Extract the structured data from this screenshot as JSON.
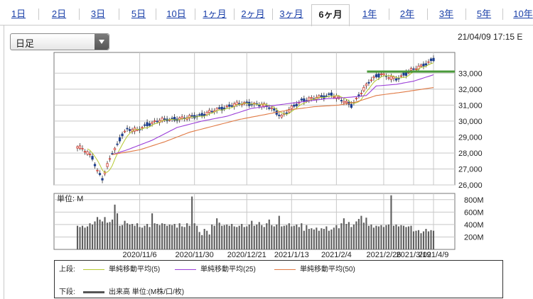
{
  "tabs": [
    {
      "label": "1日",
      "active": false
    },
    {
      "label": "2日",
      "active": false
    },
    {
      "label": "3日",
      "active": false
    },
    {
      "label": "5日",
      "active": false
    },
    {
      "label": "10日",
      "active": false
    },
    {
      "label": "1ヶ月",
      "active": false
    },
    {
      "label": "2ヶ月",
      "active": false
    },
    {
      "label": "3ヶ月",
      "active": false
    },
    {
      "label": "6ヶ月",
      "active": true
    },
    {
      "label": "1年",
      "active": false
    },
    {
      "label": "2年",
      "active": false
    },
    {
      "label": "3年",
      "active": false
    },
    {
      "label": "5年",
      "active": false
    },
    {
      "label": "10年",
      "active": false
    }
  ],
  "selector": {
    "value": "日足"
  },
  "timestamp": "21/04/09 17:15 E",
  "legend": {
    "upper_label": "上段:",
    "lower_label": "下段:",
    "ma5": "単純移動平均(5)",
    "ma25": "単純移動平均(25)",
    "ma50": "単純移動平均(50)",
    "volume": "出来高 単位:(M株/口/枚)",
    "colors": {
      "ma5": "#b5c930",
      "ma25": "#9b3fd8",
      "ma50": "#e07a45",
      "volume": "#555555",
      "up": "#d33a2f",
      "down": "#1d3f8f"
    }
  },
  "chart_data": [
    {
      "type": "candlestick",
      "title": "",
      "ylim": [
        26000,
        34300
      ],
      "yticks": [
        26000,
        27000,
        28000,
        29000,
        30000,
        31000,
        32000,
        33000
      ],
      "ytick_labels": [
        "26,000",
        "27,000",
        "28,000",
        "29,000",
        "30,000",
        "31,000",
        "32,000",
        "33,000"
      ],
      "xtick_labels": [
        "2020/11/6",
        "2020/11/30",
        "2020/12/21",
        "2021/1/13",
        "2021/2/4",
        "2021/2/26",
        "2021/3/19",
        "2021/4/9"
      ],
      "close_anchors": [
        [
          0,
          28400
        ],
        [
          2,
          28250
        ],
        [
          4,
          28000
        ],
        [
          6,
          27700
        ],
        [
          8,
          26900
        ],
        [
          10,
          26400
        ],
        [
          12,
          27200
        ],
        [
          14,
          28000
        ],
        [
          16,
          28500
        ],
        [
          18,
          29200
        ],
        [
          20,
          29500
        ],
        [
          24,
          29400
        ],
        [
          28,
          29800
        ],
        [
          32,
          30000
        ],
        [
          36,
          30100
        ],
        [
          44,
          30200
        ],
        [
          50,
          30400
        ],
        [
          56,
          30700
        ],
        [
          62,
          31000
        ],
        [
          66,
          31100
        ],
        [
          70,
          31100
        ],
        [
          74,
          31000
        ],
        [
          78,
          30800
        ],
        [
          82,
          30300
        ],
        [
          86,
          30800
        ],
        [
          90,
          31300
        ],
        [
          94,
          31400
        ],
        [
          98,
          31500
        ],
        [
          102,
          31700
        ],
        [
          106,
          31300
        ],
        [
          110,
          31000
        ],
        [
          114,
          31800
        ],
        [
          118,
          32600
        ],
        [
          122,
          33000
        ],
        [
          124,
          32800
        ],
        [
          128,
          32600
        ],
        [
          132,
          33000
        ],
        [
          134,
          33200
        ],
        [
          138,
          33400
        ],
        [
          140,
          33600
        ],
        [
          143,
          33900
        ]
      ],
      "ma25_anchors": [
        [
          14,
          27900
        ],
        [
          20,
          28200
        ],
        [
          30,
          28800
        ],
        [
          40,
          29600
        ],
        [
          50,
          30000
        ],
        [
          60,
          30300
        ],
        [
          70,
          30800
        ],
        [
          80,
          31000
        ],
        [
          90,
          31200
        ],
        [
          100,
          31400
        ],
        [
          110,
          31500
        ],
        [
          116,
          31600
        ],
        [
          120,
          32200
        ],
        [
          128,
          32300
        ],
        [
          135,
          32500
        ],
        [
          143,
          32900
        ]
      ],
      "ma50_anchors": [
        [
          14,
          27900
        ],
        [
          25,
          28200
        ],
        [
          35,
          28700
        ],
        [
          45,
          29300
        ],
        [
          55,
          29700
        ],
        [
          65,
          30100
        ],
        [
          75,
          30400
        ],
        [
          85,
          30700
        ],
        [
          95,
          30900
        ],
        [
          105,
          31000
        ],
        [
          112,
          31200
        ],
        [
          120,
          31600
        ],
        [
          130,
          31800
        ],
        [
          143,
          32100
        ]
      ],
      "resistance_line": {
        "x0": 118,
        "x1": 143,
        "y": 33100
      }
    },
    {
      "type": "bar",
      "title": "",
      "unit_label": "単位: M",
      "ylim": [
        0,
        900
      ],
      "yticks": [
        200,
        400,
        600,
        800
      ],
      "ytick_labels": [
        "200M",
        "400M",
        "600M",
        "800M"
      ],
      "volumes": [
        380,
        360,
        380,
        350,
        370,
        420,
        400,
        450,
        520,
        480,
        450,
        520,
        430,
        440,
        480,
        720,
        580,
        380,
        390,
        460,
        420,
        400,
        410,
        380,
        420,
        360,
        350,
        380,
        410,
        360,
        580,
        420,
        410,
        390,
        420,
        410,
        380,
        400,
        390,
        410,
        350,
        420,
        370,
        360,
        420,
        380,
        850,
        420,
        380,
        280,
        230,
        330,
        300,
        240,
        400,
        380,
        500,
        430,
        380,
        390,
        400,
        380,
        410,
        370,
        360,
        380,
        410,
        360,
        370,
        400,
        460,
        380,
        400,
        440,
        390,
        360,
        420,
        480,
        390,
        370,
        400,
        540,
        370,
        380,
        390,
        420,
        370,
        380,
        400,
        360,
        420,
        300,
        390,
        330,
        340,
        320,
        350,
        300,
        340,
        330,
        370,
        300,
        320,
        350,
        390,
        340,
        420,
        500,
        410,
        440,
        360,
        400,
        450,
        490,
        540,
        430,
        510,
        380,
        400,
        350,
        380,
        370,
        390,
        360,
        390,
        400,
        870,
        380,
        400,
        370,
        390,
        380,
        360,
        370,
        380,
        290,
        300,
        310,
        260,
        290,
        330,
        290,
        310,
        300
      ]
    }
  ]
}
